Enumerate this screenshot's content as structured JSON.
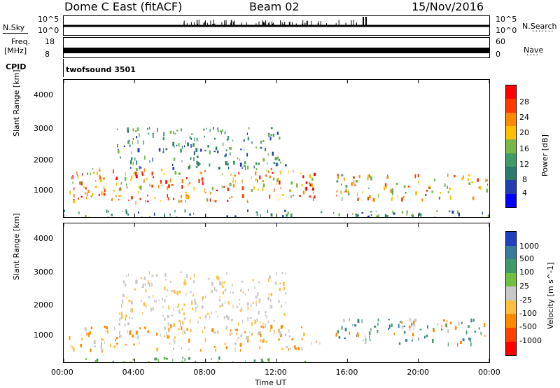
{
  "header": {
    "station": "Dome C East (fitACF)",
    "beam": "Beam 02",
    "date": "15/Nov/2016"
  },
  "top_panels": {
    "nsky_label": "N.Sky",
    "nsky_ticks": [
      "10^5",
      "10^0"
    ],
    "nsearch_label": "N.Search",
    "nsearch_ticks": [
      "10^5",
      "10^0"
    ],
    "freq_label": "Freq.",
    "freq_unit": "[MHz]",
    "freq_ticks": [
      "18",
      "8"
    ],
    "nave_label": "Nave",
    "nave_ticks": [
      "60",
      "0"
    ],
    "cpid_label": "CPID",
    "cpid_value": "twofsound 3501"
  },
  "chart_data": [
    {
      "type": "heatmap",
      "name": "power",
      "ylabel": "Slant Range [km]",
      "xlabel": "Time UT",
      "ylim": [
        200,
        4600
      ],
      "xlim": [
        0,
        24
      ],
      "yticks": [
        "4000",
        "3000",
        "2000",
        "1000"
      ],
      "xticks": [
        "00:00",
        "04:00",
        "08:00",
        "12:00",
        "16:00",
        "20:00",
        "00:00"
      ],
      "colorbar": {
        "label": "Power [dB]",
        "ticks": [
          "28",
          "24",
          "20",
          "16",
          "12",
          "8",
          "4"
        ],
        "colors": [
          "#ff0000",
          "#ff3a00",
          "#ff8a00",
          "#ffc000",
          "#7ab648",
          "#3f9a6a",
          "#2c7a6a",
          "#2040b0",
          "#0000ff"
        ]
      },
      "bands": [
        {
          "t0": 0.3,
          "t1": 14.5,
          "r0": 700,
          "r1": 1800,
          "level": "high"
        },
        {
          "t0": 15.3,
          "t1": 24,
          "r0": 800,
          "r1": 1600,
          "level": "mid"
        },
        {
          "t0": 3,
          "t1": 12.5,
          "r0": 1800,
          "r1": 3100,
          "level": "low"
        },
        {
          "t0": 0,
          "t1": 24,
          "r0": 200,
          "r1": 450,
          "level": "low"
        }
      ]
    },
    {
      "type": "heatmap",
      "name": "velocity",
      "ylabel": "Slant Range [km]",
      "xlabel": "Time UT",
      "ylim": [
        200,
        4600
      ],
      "xlim": [
        0,
        24
      ],
      "yticks": [
        "4000",
        "3000",
        "2000",
        "1000"
      ],
      "xticks": [
        "00:00",
        "04:00",
        "08:00",
        "12:00",
        "16:00",
        "20:00",
        "00:00"
      ],
      "colorbar": {
        "label": "Velocity [m s^-1]",
        "ticks": [
          "1000",
          "500",
          "100",
          "25",
          "-25",
          "-100",
          "-500",
          "-1000"
        ],
        "colors": [
          "#2040c0",
          "#3a7a9a",
          "#3f9a6a",
          "#70c040",
          "#c8c8c8",
          "#ffc040",
          "#ff8a00",
          "#ff4000",
          "#ff0000"
        ]
      },
      "bands": [
        {
          "t0": 0.3,
          "t1": 14.5,
          "r0": 600,
          "r1": 1400,
          "level": "orange"
        },
        {
          "t0": 3,
          "t1": 12.5,
          "r0": 1400,
          "r1": 3100,
          "level": "grey"
        },
        {
          "t0": 15.3,
          "t1": 24,
          "r0": 800,
          "r1": 1600,
          "level": "green"
        },
        {
          "t0": 0,
          "t1": 14,
          "r0": 200,
          "r1": 400,
          "level": "lightgreen"
        }
      ]
    }
  ]
}
